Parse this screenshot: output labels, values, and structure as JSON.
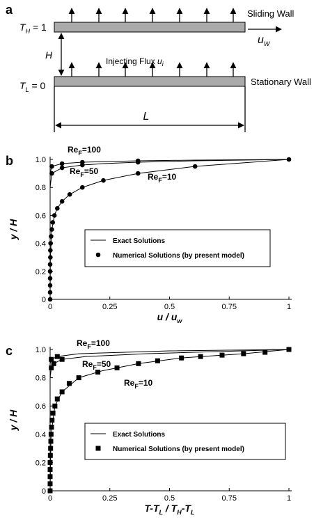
{
  "diagram": {
    "panel": "a",
    "top_temp": [
      "T",
      "H",
      " = 1"
    ],
    "top_wall": "Sliding Wall",
    "velocity": [
      "u",
      "W"
    ],
    "gap": "H",
    "flux": [
      "Injecting Flux ",
      "u",
      "i"
    ],
    "bottom_temp": [
      "T",
      "L",
      " = 0"
    ],
    "bottom_wall": "Stationary Wall",
    "length": "L"
  },
  "chart_data": [
    {
      "type": "line",
      "panel": "b",
      "marker": "circle",
      "color": "#000000",
      "ylabel": "y / H",
      "xlabel": [
        "u / u",
        "w"
      ],
      "xlim": [
        0,
        1
      ],
      "ylim": [
        0,
        1
      ],
      "xticks": [
        0,
        0.25,
        0.5,
        0.75,
        1
      ],
      "yticks": [
        0,
        0.2,
        0.4,
        0.6,
        0.8,
        {
          "value": 1,
          "label": "1.0"
        }
      ],
      "legend": [
        "Exact Solutions",
        "Numerical Solutions (by present model)"
      ],
      "annotations": [
        [
          "Re",
          "F",
          "=100"
        ],
        [
          "Re",
          "F",
          "=50"
        ],
        [
          "Re",
          "F",
          "=10"
        ]
      ],
      "series": [
        {
          "kind": "line",
          "x": [
            0,
            0,
            0.007,
            0.05,
            0.135,
            0.368,
            0.607,
            1
          ],
          "values": [
            0,
            0.9,
            0.95,
            0.97,
            0.98,
            0.99,
            0.995,
            1
          ]
        },
        {
          "kind": "line",
          "x": [
            0,
            0,
            0.007,
            0.05,
            0.135,
            0.223,
            0.368,
            0.607,
            1
          ],
          "values": [
            0,
            0.8,
            0.9,
            0.94,
            0.96,
            0.97,
            0.98,
            0.99,
            1
          ]
        },
        {
          "kind": "line",
          "x": [
            0,
            0.001,
            0.007,
            0.018,
            0.03,
            0.05,
            0.082,
            0.135,
            0.223,
            0.368,
            0.607,
            1
          ],
          "values": [
            0,
            0.3,
            0.5,
            0.6,
            0.65,
            0.7,
            0.75,
            0.8,
            0.85,
            0.9,
            0.95,
            1
          ]
        },
        {
          "kind": "marker",
          "x": [
            0.007,
            0.05,
            0.135,
            0.368
          ],
          "values": [
            0.95,
            0.97,
            0.98,
            0.99
          ]
        },
        {
          "kind": "marker",
          "x": [
            0.007,
            0.05,
            0.135,
            0.368
          ],
          "values": [
            0.9,
            0.94,
            0.96,
            0.98
          ]
        },
        {
          "kind": "marker",
          "x": [
            0,
            0,
            0,
            0,
            0,
            0,
            0.001,
            0.001,
            0.002,
            0.004,
            0.007,
            0.011,
            0.018,
            0.03,
            0.05,
            0.082,
            0.135,
            0.223,
            0.368,
            0.607,
            1
          ],
          "values": [
            0,
            0.05,
            0.1,
            0.15,
            0.2,
            0.25,
            0.3,
            0.35,
            0.4,
            0.45,
            0.5,
            0.55,
            0.6,
            0.65,
            0.7,
            0.75,
            0.8,
            0.85,
            0.9,
            0.95,
            1
          ]
        }
      ]
    },
    {
      "type": "line",
      "panel": "c",
      "marker": "square",
      "color": "#000000",
      "ylabel": "y / H",
      "xlabel": [
        "T-T",
        "L",
        " / T",
        "H",
        "-T",
        "L"
      ],
      "xlim": [
        0,
        1
      ],
      "ylim": [
        0,
        1
      ],
      "xticks": [
        0,
        0.25,
        0.5,
        0.75,
        1
      ],
      "yticks": [
        0,
        0.2,
        0.4,
        0.6,
        0.8,
        {
          "value": 1,
          "label": "1.0"
        }
      ],
      "legend": [
        "Exact Solutions",
        "Numerical Solutions (by present model)"
      ],
      "annotations": [
        [
          "Re",
          "F",
          "=100"
        ],
        [
          "Re",
          "F",
          "=50"
        ],
        [
          "Re",
          "F",
          "=10"
        ]
      ],
      "series": [
        {
          "kind": "line",
          "x": [
            0,
            0,
            0.005,
            0.03,
            0.12,
            0.5,
            1
          ],
          "values": [
            0,
            0.9,
            0.93,
            0.95,
            0.97,
            0.99,
            1
          ]
        },
        {
          "kind": "line",
          "x": [
            0,
            0,
            0.005,
            0.015,
            0.05,
            0.15,
            0.4,
            1
          ],
          "values": [
            0,
            0.8,
            0.87,
            0.9,
            0.93,
            0.95,
            0.97,
            1
          ]
        },
        {
          "kind": "line",
          "x": [
            0,
            0.004,
            0.02,
            0.05,
            0.12,
            0.22,
            0.37,
            0.55,
            0.81,
            1
          ],
          "values": [
            0,
            0.4,
            0.6,
            0.7,
            0.8,
            0.85,
            0.9,
            0.94,
            0.97,
            1
          ]
        },
        {
          "kind": "marker",
          "x": [
            0.005,
            0.03
          ],
          "values": [
            0.93,
            0.95
          ]
        },
        {
          "kind": "marker",
          "x": [
            0.005,
            0.015,
            0.05
          ],
          "values": [
            0.87,
            0.9,
            0.93
          ]
        },
        {
          "kind": "marker",
          "x": [
            0,
            0,
            0,
            0,
            0,
            0.001,
            0.002,
            0.003,
            0.004,
            0.006,
            0.008,
            0.012,
            0.02,
            0.03,
            0.05,
            0.08,
            0.12,
            0.2,
            0.28,
            0.37,
            0.45,
            0.55,
            0.63,
            0.72,
            0.81,
            0.9,
            1
          ],
          "values": [
            0,
            0.05,
            0.1,
            0.15,
            0.2,
            0.25,
            0.3,
            0.35,
            0.4,
            0.45,
            0.5,
            0.55,
            0.6,
            0.65,
            0.7,
            0.76,
            0.8,
            0.84,
            0.87,
            0.9,
            0.92,
            0.94,
            0.95,
            0.96,
            0.97,
            0.98,
            1
          ]
        }
      ]
    }
  ]
}
